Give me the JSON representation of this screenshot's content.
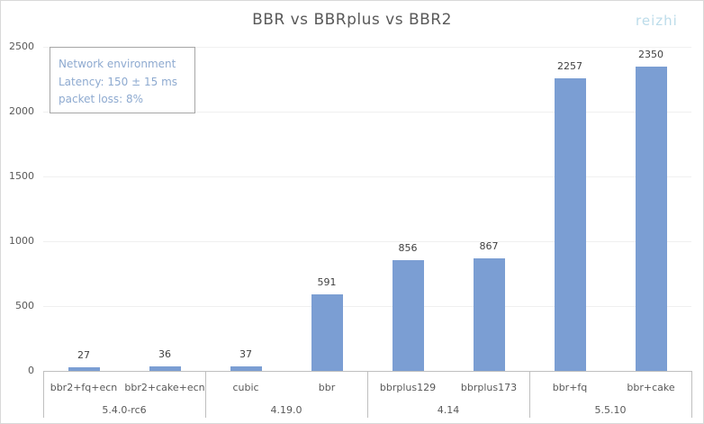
{
  "chart_data": {
    "type": "bar",
    "title": "BBR vs BBRplus vs BBR2",
    "watermark": "reizhi",
    "xlabel": "",
    "ylabel": "",
    "ylim": [
      0,
      2500
    ],
    "yticks": [
      "0",
      "500",
      "1000",
      "1500",
      "2000",
      "2500"
    ],
    "grid": true,
    "legend": null,
    "categories": [
      "bbr2+fq+ecn",
      "bbr2+cake+ecn",
      "cubic",
      "bbr",
      "bbrplus129",
      "bbrplus173",
      "bbr+fq",
      "bbr+cake"
    ],
    "groups": [
      {
        "label": "5.4.0-rc6",
        "span": 2
      },
      {
        "label": "4.19.0",
        "span": 2
      },
      {
        "label": "4.14",
        "span": 2
      },
      {
        "label": "5.5.10",
        "span": 2
      }
    ],
    "values": [
      27,
      36,
      37,
      591,
      856,
      867,
      2257,
      2350
    ],
    "value_labels": [
      "27",
      "36",
      "37",
      "591",
      "856",
      "867",
      "2257",
      "2350"
    ],
    "bar_color": "#7b9ed3",
    "annotation": {
      "lines": [
        "Network environment",
        "Latency: 150 ± 15 ms",
        "packet loss: 8%"
      ]
    }
  }
}
